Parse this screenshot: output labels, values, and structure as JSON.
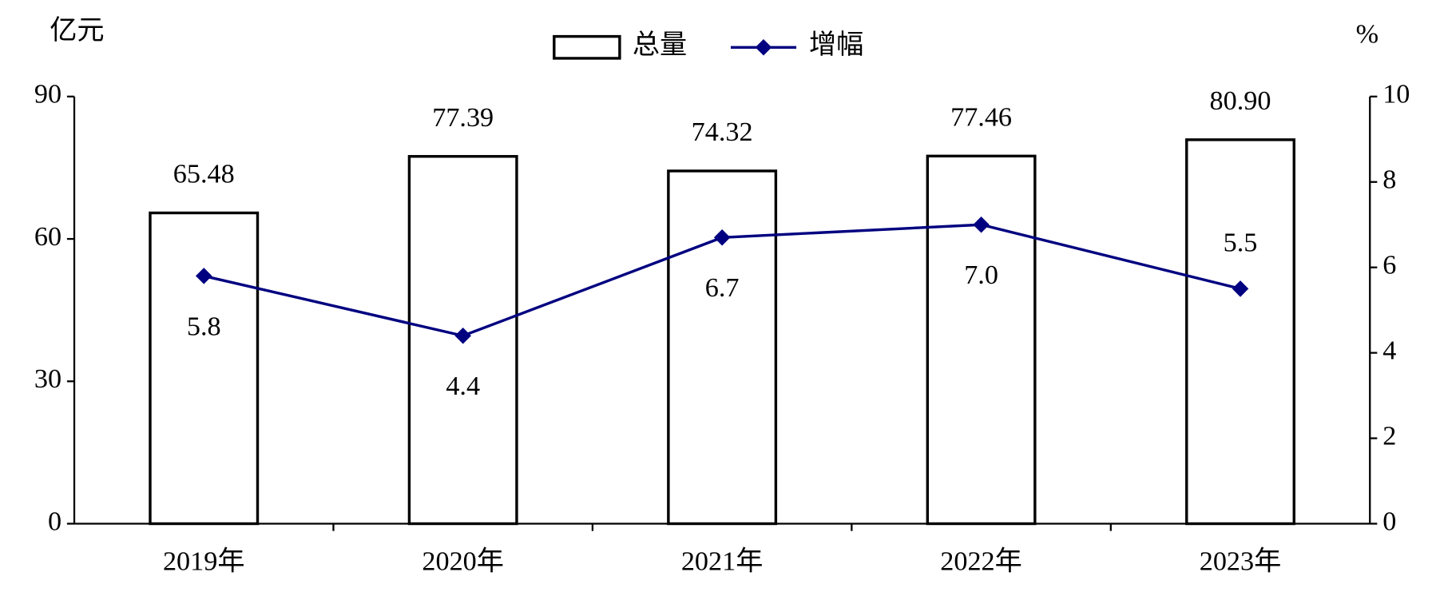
{
  "chart_data": {
    "type": "bar",
    "y_label": "亿元",
    "y2_label": "%",
    "categories": [
      "2019年",
      "2020年",
      "2021年",
      "2022年",
      "2023年"
    ],
    "series": [
      {
        "name": "总量",
        "type": "bar",
        "color": "#ffffff",
        "values": [
          65.48,
          77.39,
          74.32,
          77.46,
          80.9
        ],
        "value_labels": [
          "65.48",
          "77.39",
          "74.32",
          "77.46",
          "80.90"
        ]
      },
      {
        "name": "增幅",
        "type": "line",
        "axis": "y2",
        "color": "#000080",
        "values": [
          5.8,
          4.4,
          6.7,
          7.0,
          5.5
        ],
        "value_labels": [
          "5.8",
          "4.4",
          "6.7",
          "7.0",
          "5.5"
        ]
      }
    ],
    "ylim": [
      0,
      90
    ],
    "yticks": [
      0,
      30,
      60,
      90
    ],
    "y2lim": [
      0,
      10
    ],
    "y2ticks": [
      0,
      2,
      4,
      6,
      8,
      10
    ],
    "legend": "top"
  }
}
